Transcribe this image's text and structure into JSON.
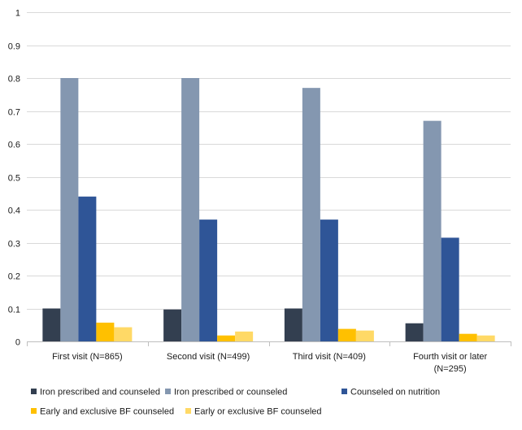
{
  "chart_data": {
    "type": "bar",
    "title": "",
    "xlabel": "",
    "ylabel": "",
    "ylim": [
      0,
      1
    ],
    "yticks": [
      "0",
      "0.1",
      "0.2",
      "0.3",
      "0.4",
      "0.5",
      "0.6",
      "0.7",
      "0.8",
      "0.9",
      "1"
    ],
    "yticks_values": [
      0,
      0.1,
      0.2,
      0.3,
      0.4,
      0.5,
      0.6,
      0.7,
      0.8,
      0.9,
      1
    ],
    "categories": [
      [
        "First visit (N=865)"
      ],
      [
        "Second visit (N=499)"
      ],
      [
        "Third visit (N=409)"
      ],
      [
        "Fourth visit or later",
        "(N=295)"
      ]
    ],
    "series": [
      {
        "name": "Iron prescribed and counseled",
        "color": "#333f50",
        "values": [
          0.1,
          0.097,
          0.1,
          0.055
        ]
      },
      {
        "name": "Iron prescribed or counseled",
        "color": "#8497b0",
        "values": [
          0.8,
          0.8,
          0.77,
          0.67
        ]
      },
      {
        "name": "Counseled on nutrition",
        "color": "#2f5597",
        "values": [
          0.44,
          0.37,
          0.37,
          0.315
        ]
      },
      {
        "name": "Early and exclusive BF counseled",
        "color": "#ffc000",
        "values": [
          0.057,
          0.018,
          0.038,
          0.023
        ]
      },
      {
        "name": "Early or exclusive BF counseled",
        "color": "#ffd966",
        "values": [
          0.043,
          0.03,
          0.033,
          0.018
        ]
      }
    ],
    "grid": true,
    "legend_position": "bottom"
  }
}
